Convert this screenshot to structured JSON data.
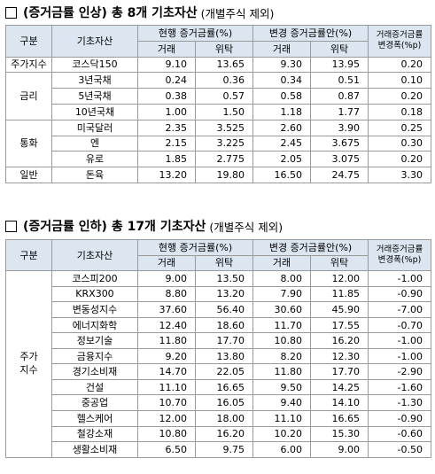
{
  "section1": {
    "title": "(증거금률 인상) 총 8개 기초자산",
    "subtitle": "(개별주식 제외)",
    "headers": {
      "group": "구분",
      "asset": "기초자산",
      "current": "현행 증거금률(%)",
      "proposed": "변경 증거금률안(%)",
      "change_line1": "거래증거금률",
      "change_line2": "변경폭(%p)",
      "trade": "거래",
      "consign": "위탁"
    },
    "rows": [
      {
        "group": "주가지수",
        "asset": "코스닥150",
        "cur_trade": "9.10",
        "cur_consign": "13.65",
        "new_trade": "9.30",
        "new_consign": "13.95",
        "change": "0.20"
      },
      {
        "group": "금리",
        "asset": "3년국채",
        "cur_trade": "0.24",
        "cur_consign": "0.36",
        "new_trade": "0.34",
        "new_consign": "0.51",
        "change": "0.10"
      },
      {
        "group": "",
        "asset": "5년국채",
        "cur_trade": "0.38",
        "cur_consign": "0.57",
        "new_trade": "0.58",
        "new_consign": "0.87",
        "change": "0.20"
      },
      {
        "group": "",
        "asset": "10년국채",
        "cur_trade": "1.00",
        "cur_consign": "1.50",
        "new_trade": "1.18",
        "new_consign": "1.77",
        "change": "0.18"
      },
      {
        "group": "통화",
        "asset": "미국달러",
        "cur_trade": "2.35",
        "cur_consign": "3.525",
        "new_trade": "2.60",
        "new_consign": "3.90",
        "change": "0.25"
      },
      {
        "group": "",
        "asset": "엔",
        "cur_trade": "2.15",
        "cur_consign": "3.225",
        "new_trade": "2.45",
        "new_consign": "3.675",
        "change": "0.30"
      },
      {
        "group": "",
        "asset": "유로",
        "cur_trade": "1.85",
        "cur_consign": "2.775",
        "new_trade": "2.05",
        "new_consign": "3.075",
        "change": "0.20"
      },
      {
        "group": "일반",
        "asset": "돈육",
        "cur_trade": "13.20",
        "cur_consign": "19.80",
        "new_trade": "16.50",
        "new_consign": "24.75",
        "change": "3.30"
      }
    ]
  },
  "section2": {
    "title": "(증거금률 인하) 총 17개 기초자산",
    "subtitle": "(개별주식 제외)",
    "headers": {
      "group": "구분",
      "asset": "기초자산",
      "current": "현행 증거금률(%)",
      "proposed": "변경 증거금률안(%)",
      "change_line1": "거래증거금률",
      "change_line2": "변경폭(%p)",
      "trade": "거래",
      "consign": "위탁"
    },
    "group_label_line1": "주가",
    "group_label_line2": "지수",
    "rows": [
      {
        "asset": "코스피200",
        "cur_trade": "9.00",
        "cur_consign": "13.50",
        "new_trade": "8.00",
        "new_consign": "12.00",
        "change": "-1.00"
      },
      {
        "asset": "KRX300",
        "cur_trade": "8.80",
        "cur_consign": "13.20",
        "new_trade": "7.90",
        "new_consign": "11.85",
        "change": "-0.90"
      },
      {
        "asset": "변동성지수",
        "cur_trade": "37.60",
        "cur_consign": "56.40",
        "new_trade": "30.60",
        "new_consign": "45.90",
        "change": "-7.00"
      },
      {
        "asset": "에너지화학",
        "cur_trade": "12.40",
        "cur_consign": "18.60",
        "new_trade": "11.70",
        "new_consign": "17.55",
        "change": "-0.70"
      },
      {
        "asset": "정보기술",
        "cur_trade": "11.80",
        "cur_consign": "17.70",
        "new_trade": "10.80",
        "new_consign": "16.20",
        "change": "-1.00"
      },
      {
        "asset": "금융지수",
        "cur_trade": "9.20",
        "cur_consign": "13.80",
        "new_trade": "8.20",
        "new_consign": "12.30",
        "change": "-1.00"
      },
      {
        "asset": "경기소비재",
        "cur_trade": "14.70",
        "cur_consign": "22.05",
        "new_trade": "11.80",
        "new_consign": "17.70",
        "change": "-2.90"
      },
      {
        "asset": "건설",
        "cur_trade": "11.10",
        "cur_consign": "16.65",
        "new_trade": "9.50",
        "new_consign": "14.25",
        "change": "-1.60"
      },
      {
        "asset": "중공업",
        "cur_trade": "10.70",
        "cur_consign": "16.05",
        "new_trade": "9.40",
        "new_consign": "14.10",
        "change": "-1.30"
      },
      {
        "asset": "헬스케어",
        "cur_trade": "12.00",
        "cur_consign": "18.00",
        "new_trade": "11.10",
        "new_consign": "16.65",
        "change": "-0.90"
      },
      {
        "asset": "철강소재",
        "cur_trade": "10.80",
        "cur_consign": "16.20",
        "new_trade": "10.20",
        "new_consign": "15.30",
        "change": "-0.60"
      },
      {
        "asset": "생활소비재",
        "cur_trade": "6.50",
        "cur_consign": "9.75",
        "new_trade": "6.00",
        "new_consign": "9.00",
        "change": "-0.50"
      }
    ]
  }
}
